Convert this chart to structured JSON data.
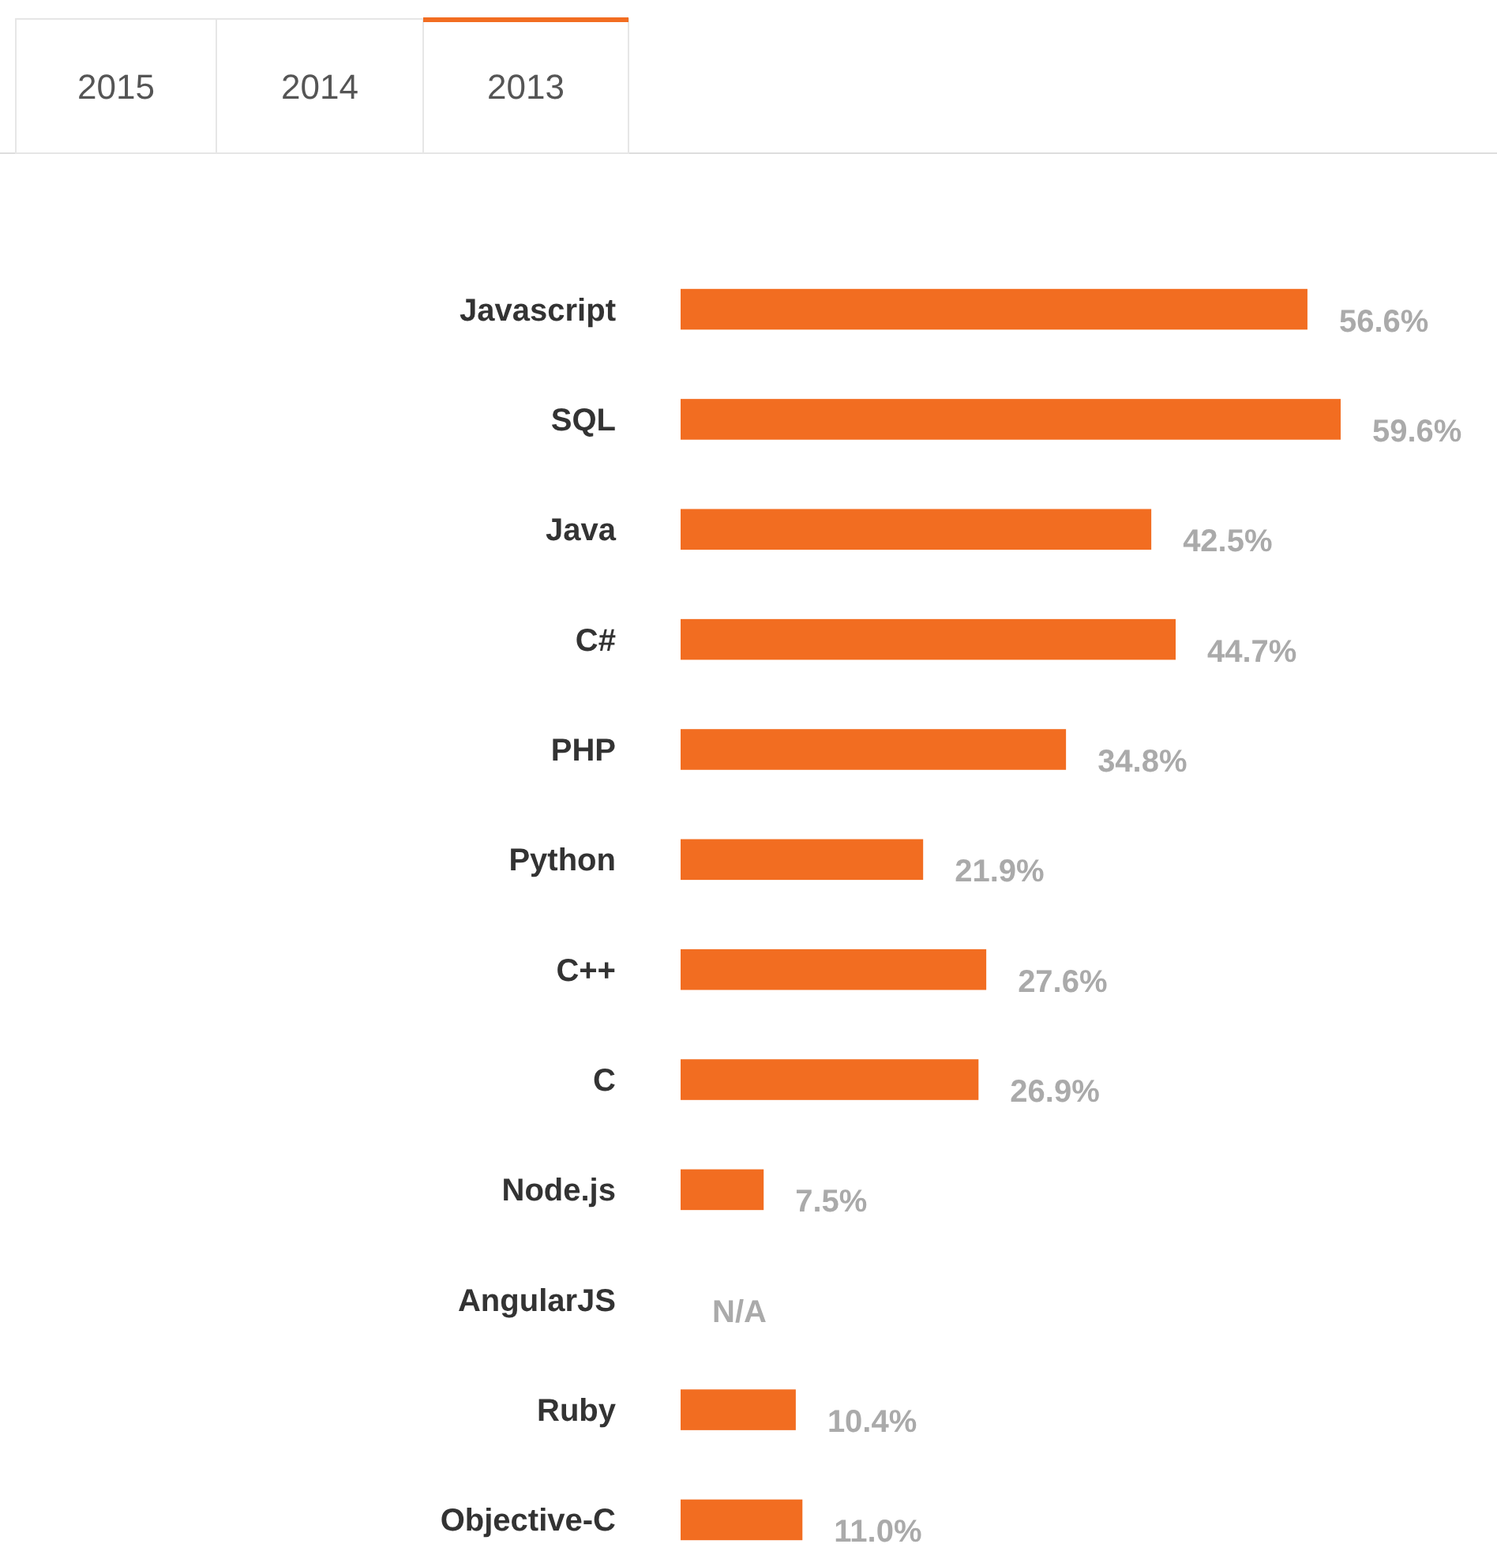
{
  "chart_data": {
    "type": "bar",
    "orientation": "horizontal",
    "categories": [
      "Javascript",
      "SQL",
      "Java",
      "C#",
      "PHP",
      "Python",
      "C++",
      "C",
      "Node.js",
      "AngularJS",
      "Ruby",
      "Objective-C"
    ],
    "values": [
      56.6,
      59.6,
      42.5,
      44.7,
      34.8,
      21.9,
      27.6,
      26.9,
      7.5,
      null,
      10.4,
      11.0
    ],
    "value_labels": [
      "56.6%",
      "59.6%",
      "42.5%",
      "44.7%",
      "34.8%",
      "21.9%",
      "27.6%",
      "26.9%",
      "7.5%",
      "N/A",
      "10.4%",
      "11.0%"
    ],
    "color": "#f26d21",
    "annotations": [
      "2015",
      "2014",
      "2013"
    ]
  }
}
